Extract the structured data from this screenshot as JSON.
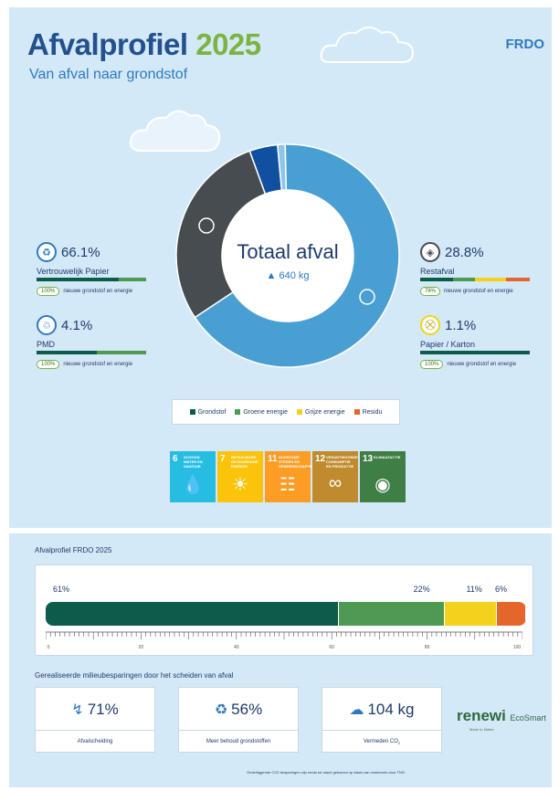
{
  "header": {
    "title_main": "Afvalprofiel",
    "title_year": "2025",
    "subtitle": "Van afval naar grondstof",
    "brand": "FRDO"
  },
  "donut": {
    "title": "Totaal afval",
    "total": "640 kg",
    "segments": [
      {
        "name": "Vertrouwelijk Papier",
        "value": 66.1,
        "color": "#4a9fd2"
      },
      {
        "name": "Restafval",
        "value": 28.8,
        "color": "#474c50"
      },
      {
        "name": "PMD",
        "value": 4.1,
        "color": "#114fa0"
      },
      {
        "name": "Papier / Karton",
        "value": 1.1,
        "color": "#8ec5e8"
      }
    ]
  },
  "stats": {
    "papier": {
      "pct": "66.1%",
      "label": "Vertrouwelijk Papier",
      "badge": "100%",
      "note": "nieuwe grondstof en energie",
      "bar": [
        75,
        25,
        0,
        0
      ]
    },
    "pmd": {
      "pct": "4.1%",
      "label": "PMD",
      "badge": "100%",
      "note": "nieuwe grondstof en energie",
      "bar": [
        55,
        45,
        0,
        0
      ]
    },
    "rest": {
      "pct": "28.8%",
      "label": "Restafval",
      "badge": "78%",
      "note": "nieuwe grondstof en energie",
      "bar": [
        30,
        20,
        28,
        22
      ]
    },
    "karton": {
      "pct": "1.1%",
      "label": "Papier / Karton",
      "badge": "100%",
      "note": "nieuwe grondstof en energie",
      "bar": [
        100,
        0,
        0,
        0
      ]
    }
  },
  "legend": {
    "items": [
      {
        "label": "Grondstof",
        "color": "#0d5c4a"
      },
      {
        "label": "Groene energie",
        "color": "#4e9a52"
      },
      {
        "label": "Grijze energie",
        "color": "#f2d21c"
      },
      {
        "label": "Residu",
        "color": "#e4662a"
      }
    ]
  },
  "sdgs": [
    {
      "num": "6",
      "text": "SCHOON WATER EN SANITAIR",
      "color": "#27bde2",
      "icon": "water-icon"
    },
    {
      "num": "7",
      "text": "BETAALBARE EN DUURZAME ENERGIE",
      "color": "#fcc30b",
      "icon": "sun-icon"
    },
    {
      "num": "11",
      "text": "DUURZAME STEDEN EN GEMEENSCHAPPEN",
      "color": "#fd9d24",
      "icon": "city-icon"
    },
    {
      "num": "12",
      "text": "VERANTWOORDE CONSUMPTIE EN PRODUCTIE",
      "color": "#bf8b2e",
      "icon": "infinity-icon"
    },
    {
      "num": "13",
      "text": "KLIMAATACTIE",
      "color": "#3f7e44",
      "icon": "eye-icon"
    }
  ],
  "profile": {
    "title": "Afvalprofiel FRDO 2025",
    "segments": [
      {
        "label": "61%",
        "value": 61,
        "color": "#0d5c4a"
      },
      {
        "label": "22%",
        "value": 22,
        "color": "#4e9a52"
      },
      {
        "label": "11%",
        "value": 11,
        "color": "#f2d21c"
      },
      {
        "label": "6%",
        "value": 6,
        "color": "#e4662a"
      }
    ],
    "ticks": [
      "0",
      "20",
      "40",
      "60",
      "80",
      "100"
    ]
  },
  "savings": {
    "title": "Gerealiseerde milieubesparingen door het scheiden van afval",
    "items": [
      {
        "value": "71%",
        "label": "Afvalscheiding",
        "icon": "split-arrow-icon"
      },
      {
        "value": "56%",
        "label": "Meer behoud grondstoffen",
        "icon": "recycle-icon"
      },
      {
        "value": "104 kg",
        "label": "Vermeden CO",
        "icon": "cloud-icon"
      }
    ]
  },
  "renewi": {
    "name": "renewi",
    "product": "EcoSmart",
    "slogan": "Made to Matter"
  },
  "footnote": "Onderliggende CO2 besparingen zijn reeds tot stand gekomen op basis van onderzoek door TNO."
}
